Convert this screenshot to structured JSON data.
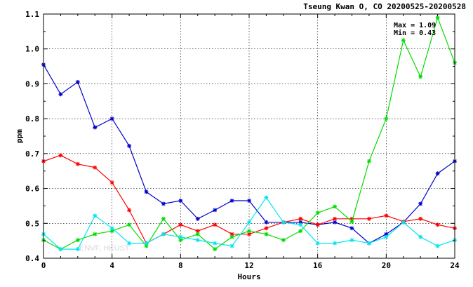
{
  "chart_data": {
    "type": "line",
    "title": "Tseung Kwan O, CO 20200525-20200528",
    "xlabel": "Hours",
    "ylabel": "ppm",
    "xlim": [
      0,
      24
    ],
    "ylim": [
      0.4,
      1.1
    ],
    "x_ticks": [
      "0",
      "4",
      "8",
      "12",
      "16",
      "20",
      "24"
    ],
    "y_ticks": [
      "0.4",
      "0.5",
      "0.6",
      "0.7",
      "0.8",
      "0.9",
      "1.0",
      "1.1"
    ],
    "grid": true,
    "max_label": "Max = 1.09",
    "min_label": "Min = 0.43",
    "watermark": "ENVF, HKUST",
    "x": [
      0,
      1,
      2,
      3,
      4,
      5,
      6,
      7,
      8,
      9,
      10,
      11,
      12,
      13,
      14,
      15,
      16,
      17,
      18,
      19,
      20,
      21,
      22,
      23,
      24
    ],
    "series": [
      {
        "color": "#0000cc",
        "values": [
          0.955,
          0.87,
          0.905,
          0.775,
          0.8,
          0.722,
          0.59,
          0.556,
          0.565,
          0.513,
          0.538,
          0.565,
          0.565,
          0.503,
          0.503,
          0.503,
          0.496,
          0.503,
          0.486,
          0.443,
          0.469,
          0.503,
          0.556,
          0.643,
          0.678
        ]
      },
      {
        "color": "#ff0000",
        "values": [
          0.678,
          0.695,
          0.67,
          0.66,
          0.617,
          0.538,
          0.443,
          0.469,
          0.496,
          0.478,
          0.496,
          0.469,
          0.469,
          0.486,
          0.503,
          0.513,
          0.496,
          0.513,
          0.513,
          0.513,
          0.522,
          0.505,
          0.513,
          0.496,
          0.486
        ]
      },
      {
        "color": "#00dd00",
        "values": [
          0.452,
          0.426,
          0.452,
          0.469,
          0.478,
          0.496,
          0.435,
          0.513,
          0.452,
          0.469,
          0.426,
          0.461,
          0.478,
          0.469,
          0.452,
          0.478,
          0.53,
          0.548,
          0.505,
          0.678,
          0.8,
          1.025,
          0.92,
          1.09,
          0.96
        ]
      },
      {
        "color": "#00e5ee",
        "values": [
          0.469,
          0.426,
          0.426,
          0.522,
          0.486,
          0.443,
          0.443,
          0.469,
          0.461,
          0.452,
          0.443,
          0.435,
          0.503,
          0.574,
          0.503,
          0.496,
          0.443,
          0.443,
          0.452,
          0.443,
          0.461,
          0.503,
          0.461,
          0.435,
          0.452
        ]
      }
    ]
  }
}
